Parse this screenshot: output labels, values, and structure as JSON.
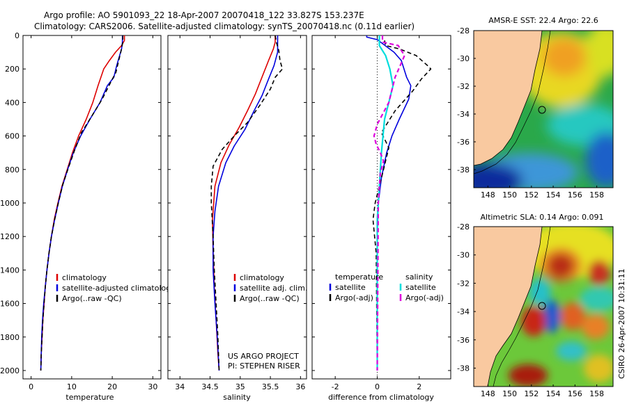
{
  "header": {
    "line1": "Argo profile: AO 5901093_22 18-Apr-2007 20070418_122 33.827S 153.237E",
    "line2": "Climatology: CARS2006. Satellite-adjusted climatology: synTS_20070418.nc (0.11d earlier)"
  },
  "side_label": "CSIRO 26-Apr-2007 10:31:11",
  "colors": {
    "clim": "#dd0000",
    "sat": "#0000dd",
    "argo": "#000000",
    "cyan": "#00dddd",
    "magenta": "#dd00dd",
    "land": "#f9c9a0"
  },
  "chart_data": [
    {
      "id": "temperature",
      "type": "line",
      "xlabel": "temperature",
      "xlim": [
        -2,
        32
      ],
      "xticks": [
        0,
        10,
        20,
        30
      ],
      "ylim": [
        0,
        2050
      ],
      "yticks": [
        0,
        200,
        400,
        600,
        800,
        1000,
        1200,
        1400,
        1600,
        1800,
        2000
      ],
      "legend": [
        "climatology",
        "satellite-adjusted climatology",
        "Argo(..raw -QC)"
      ],
      "series": [
        {
          "name": "climatology",
          "color": "clim",
          "dash": false,
          "points": [
            [
              23,
              0
            ],
            [
              23,
              30
            ],
            [
              22.3,
              60
            ],
            [
              20.8,
              100
            ],
            [
              19.3,
              150
            ],
            [
              17.9,
              200
            ],
            [
              16.5,
              300
            ],
            [
              15.2,
              400
            ],
            [
              13.6,
              500
            ],
            [
              11.7,
              600
            ],
            [
              10.2,
              700
            ],
            [
              8.9,
              800
            ],
            [
              7.6,
              900
            ],
            [
              6.6,
              1000
            ],
            [
              5.7,
              1100
            ],
            [
              5.0,
              1200
            ],
            [
              4.4,
              1300
            ],
            [
              3.9,
              1400
            ],
            [
              3.5,
              1500
            ],
            [
              3.2,
              1600
            ],
            [
              2.9,
              1700
            ],
            [
              2.7,
              1800
            ],
            [
              2.5,
              1900
            ],
            [
              2.4,
              2000
            ]
          ]
        },
        {
          "name": "satellite-adjusted climatology",
          "color": "sat",
          "dash": false,
          "points": [
            [
              22.5,
              0
            ],
            [
              22.5,
              40
            ],
            [
              22.3,
              80
            ],
            [
              21.7,
              130
            ],
            [
              21.1,
              180
            ],
            [
              20.4,
              250
            ],
            [
              18.8,
              300
            ],
            [
              17.0,
              400
            ],
            [
              14.5,
              500
            ],
            [
              12.2,
              600
            ],
            [
              10.4,
              700
            ],
            [
              9.0,
              800
            ],
            [
              7.7,
              900
            ],
            [
              6.7,
              1000
            ],
            [
              5.8,
              1100
            ],
            [
              5.0,
              1200
            ],
            [
              4.4,
              1300
            ],
            [
              3.9,
              1400
            ],
            [
              3.5,
              1500
            ],
            [
              3.1,
              1600
            ],
            [
              2.8,
              1700
            ],
            [
              2.6,
              1800
            ],
            [
              2.5,
              1900
            ],
            [
              2.4,
              2000
            ]
          ]
        },
        {
          "name": "Argo(..raw -QC)",
          "color": "argo",
          "dash": true,
          "points": [
            [
              22.6,
              0
            ],
            [
              22.6,
              40
            ],
            [
              22.2,
              90
            ],
            [
              21.6,
              150
            ],
            [
              20.9,
              220
            ],
            [
              19.6,
              280
            ],
            [
              17.5,
              380
            ],
            [
              15.0,
              480
            ],
            [
              12.4,
              580
            ],
            [
              10.8,
              680
            ],
            [
              9.2,
              790
            ],
            [
              7.8,
              890
            ],
            [
              6.7,
              1000
            ],
            [
              5.8,
              1100
            ],
            [
              5.0,
              1200
            ],
            [
              4.4,
              1300
            ],
            [
              3.9,
              1400
            ],
            [
              3.5,
              1500
            ],
            [
              3.2,
              1600
            ],
            [
              2.9,
              1700
            ],
            [
              2.7,
              1800
            ],
            [
              2.5,
              1900
            ],
            [
              2.4,
              2000
            ]
          ]
        }
      ]
    },
    {
      "id": "salinity",
      "type": "line",
      "xlabel": "salinity",
      "xlim": [
        33.8,
        36.1
      ],
      "xticks": [
        34,
        34.5,
        35,
        35.5,
        36
      ],
      "ylim": [
        0,
        2050
      ],
      "legend": [
        "climatology",
        "satellite adj. clim.",
        "Argo(..raw -QC)"
      ],
      "annotation": [
        "US ARGO PROJECT",
        "PI: STEPHEN RISER"
      ],
      "series": [
        {
          "name": "climatology",
          "color": "clim",
          "dash": false,
          "points": [
            [
              35.58,
              0
            ],
            [
              35.58,
              40
            ],
            [
              35.55,
              80
            ],
            [
              35.47,
              150
            ],
            [
              35.36,
              250
            ],
            [
              35.25,
              350
            ],
            [
              35.12,
              450
            ],
            [
              34.98,
              550
            ],
            [
              34.82,
              650
            ],
            [
              34.68,
              760
            ],
            [
              34.58,
              900
            ],
            [
              34.54,
              1100
            ],
            [
              34.55,
              1300
            ],
            [
              34.57,
              1500
            ],
            [
              34.6,
              1700
            ],
            [
              34.63,
              1900
            ],
            [
              34.65,
              2000
            ]
          ]
        },
        {
          "name": "satellite adj. clim.",
          "color": "sat",
          "dash": false,
          "points": [
            [
              35.62,
              0
            ],
            [
              35.62,
              60
            ],
            [
              35.62,
              100
            ],
            [
              35.56,
              180
            ],
            [
              35.47,
              260
            ],
            [
              35.36,
              360
            ],
            [
              35.23,
              450
            ],
            [
              35.08,
              560
            ],
            [
              34.9,
              660
            ],
            [
              34.76,
              760
            ],
            [
              34.64,
              900
            ],
            [
              34.58,
              1050
            ],
            [
              34.55,
              1200
            ],
            [
              34.55,
              1400
            ],
            [
              34.58,
              1600
            ],
            [
              34.62,
              1800
            ],
            [
              34.65,
              2000
            ]
          ]
        },
        {
          "name": "Argo(..raw -QC)",
          "color": "argo",
          "dash": true,
          "points": [
            [
              35.58,
              0
            ],
            [
              35.6,
              40
            ],
            [
              35.64,
              90
            ],
            [
              35.66,
              150
            ],
            [
              35.7,
              200
            ],
            [
              35.58,
              250
            ],
            [
              35.5,
              320
            ],
            [
              35.32,
              420
            ],
            [
              35.12,
              520
            ],
            [
              34.9,
              600
            ],
            [
              34.7,
              680
            ],
            [
              34.55,
              780
            ],
            [
              34.52,
              900
            ],
            [
              34.52,
              1000
            ],
            [
              34.55,
              1200
            ],
            [
              34.57,
              1400
            ],
            [
              34.6,
              1600
            ],
            [
              34.63,
              1800
            ],
            [
              34.65,
              2000
            ]
          ]
        }
      ]
    },
    {
      "id": "difference",
      "type": "line",
      "xlabel": "difference from climatology",
      "xlim": [
        -3.1,
        3.5
      ],
      "xticks": [
        -2,
        0,
        2
      ],
      "ylim": [
        0,
        2050
      ],
      "legend_left_title": "temperature",
      "legend_right_title": "salinity",
      "legend": [
        "satellite",
        "Argo(-adj)",
        "satellite",
        "Argo(-adj)"
      ],
      "series": [
        {
          "name": "temperature satellite",
          "color": "sat",
          "dash": false,
          "points": [
            [
              -0.5,
              0
            ],
            [
              -0.5,
              10
            ],
            [
              0,
              25
            ],
            [
              0.8,
              100
            ],
            [
              1.15,
              150
            ],
            [
              1.4,
              250
            ],
            [
              1.6,
              300
            ],
            [
              1.5,
              380
            ],
            [
              1.05,
              500
            ],
            [
              0.7,
              600
            ],
            [
              0.45,
              700
            ],
            [
              0.2,
              850
            ],
            [
              0.05,
              1000
            ],
            [
              0,
              1200
            ],
            [
              0,
              2000
            ]
          ]
        },
        {
          "name": "temperature Argo(-adj)",
          "color": "argo",
          "dash": true,
          "points": [
            [
              0.35,
              30
            ],
            [
              0.4,
              60
            ],
            [
              1.05,
              80
            ],
            [
              1.85,
              120
            ],
            [
              2.4,
              180
            ],
            [
              2.55,
              200
            ],
            [
              2.1,
              260
            ],
            [
              1.7,
              330
            ],
            [
              0.85,
              450
            ],
            [
              0.2,
              580
            ],
            [
              0.55,
              670
            ],
            [
              0.3,
              800
            ],
            [
              -0.1,
              1000
            ],
            [
              -0.2,
              1100
            ],
            [
              -0.05,
              1300
            ],
            [
              0,
              2000
            ]
          ]
        },
        {
          "name": "salinity satellite",
          "color": "cyan",
          "dash": false,
          "points": [
            [
              0.1,
              0
            ],
            [
              0.1,
              60
            ],
            [
              0.4,
              120
            ],
            [
              0.6,
              200
            ],
            [
              0.75,
              300
            ],
            [
              0.55,
              400
            ],
            [
              0.35,
              500
            ],
            [
              0.2,
              700
            ],
            [
              0.1,
              900
            ],
            [
              0,
              1100
            ],
            [
              0,
              2000
            ]
          ]
        },
        {
          "name": "salinity Argo(-adj)",
          "color": "magenta",
          "dash": true,
          "points": [
            [
              0.25,
              0
            ],
            [
              0.25,
              40
            ],
            [
              1.0,
              60
            ],
            [
              1.3,
              120
            ],
            [
              0.85,
              250
            ],
            [
              0.55,
              400
            ],
            [
              0.0,
              530
            ],
            [
              -0.15,
              600
            ],
            [
              -0.05,
              650
            ],
            [
              0.15,
              700
            ],
            [
              0.3,
              750
            ],
            [
              0.15,
              820
            ],
            [
              0.05,
              1000
            ],
            [
              0,
              2000
            ]
          ]
        }
      ]
    }
  ],
  "maps": [
    {
      "id": "sst",
      "title": "AMSR-E SST: 22.4 Argo: 22.6",
      "xticks": [
        "148",
        "150",
        "152",
        "154",
        "156",
        "158"
      ],
      "yticks": [
        "-28",
        "-30",
        "-32",
        "-34",
        "-36",
        "-38"
      ]
    },
    {
      "id": "sla",
      "title": "Altimetric SLA: 0.14 Argo: 0.091",
      "xticks": [
        "148",
        "150",
        "152",
        "154",
        "156",
        "158"
      ],
      "yticks": [
        "-28",
        "-30",
        "-32",
        "-34",
        "-36",
        "-38"
      ]
    }
  ]
}
